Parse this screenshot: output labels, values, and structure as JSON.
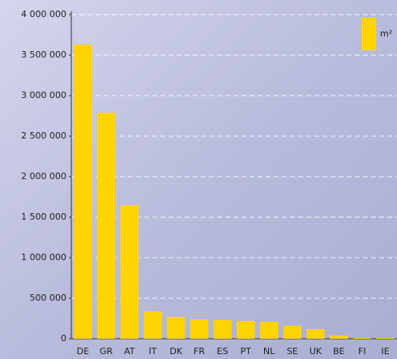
{
  "chart_data": {
    "type": "bar",
    "categories": [
      "DE",
      "GR",
      "AT",
      "IT",
      "DK",
      "FR",
      "ES",
      "PT",
      "NL",
      "SE",
      "UK",
      "BE",
      "FI",
      "IE"
    ],
    "series": [
      {
        "name": "m²",
        "color": "#ffd400",
        "values": [
          3630000,
          2790000,
          1650000,
          340000,
          270000,
          240000,
          230000,
          220000,
          210000,
          160000,
          120000,
          40000,
          10000,
          10000
        ]
      }
    ],
    "ylim": [
      0,
      4000000
    ],
    "yticks": [
      0,
      {
        "value": 500000,
        "label": "500 000"
      },
      {
        "value": 1000000,
        "label": "1 000 000"
      },
      {
        "value": 1500000,
        "label": "1 500 000"
      },
      {
        "value": 2000000,
        "label": "2 000 000"
      },
      {
        "value": 2500000,
        "label": "2 500 000"
      },
      {
        "value": 3000000,
        "label": "3 000 000"
      },
      {
        "value": 3500000,
        "label": "3 500 000"
      },
      {
        "value": 4000000,
        "label": "4 000 000"
      }
    ],
    "grid": true,
    "legend": "top-right"
  }
}
